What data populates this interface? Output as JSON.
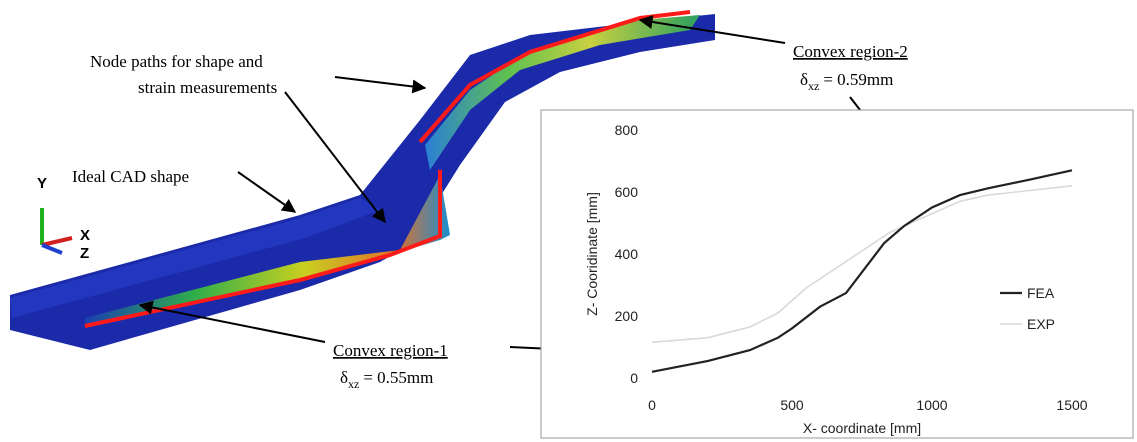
{
  "annotations": {
    "node_paths": [
      "Node paths for shape and",
      "strain measurements"
    ],
    "ideal_cad": "Ideal CAD shape",
    "convex1": {
      "title": "Convex region-1",
      "symbol": "δ",
      "subscript": "xz",
      "value": "= 0.55mm"
    },
    "convex2": {
      "title": "Convex region-2",
      "symbol": "δ",
      "subscript": "xz",
      "value": "= 0.59mm"
    },
    "triad": {
      "y": "Y",
      "x": "X",
      "z": "Z"
    }
  },
  "chart_data": {
    "type": "line",
    "xlabel": "X- coordinate [mm]",
    "ylabel": "Z- Cooridinate [mm]",
    "xlim": [
      0,
      1500
    ],
    "ylim": [
      0,
      800
    ],
    "xticks": [
      0,
      500,
      1000,
      1500
    ],
    "yticks": [
      0,
      200,
      400,
      600,
      800
    ],
    "legend": "right",
    "series": [
      {
        "name": "FEA",
        "color": "#222222",
        "x": [
          0,
          200,
          350,
          450,
          500,
          600,
          693,
          829,
          900,
          1000,
          1100,
          1200,
          1350,
          1500
        ],
        "values": [
          20,
          55,
          90,
          130,
          160,
          230,
          274,
          435,
          490,
          550,
          590,
          612,
          640,
          670
        ]
      },
      {
        "name": "EXP",
        "color": "#d9d9d9",
        "x": [
          0,
          200,
          350,
          450,
          550,
          700,
          850,
          1000,
          1100,
          1200,
          1300,
          1500
        ],
        "values": [
          115,
          130,
          165,
          210,
          290,
          380,
          470,
          530,
          570,
          590,
          600,
          620
        ]
      }
    ]
  }
}
